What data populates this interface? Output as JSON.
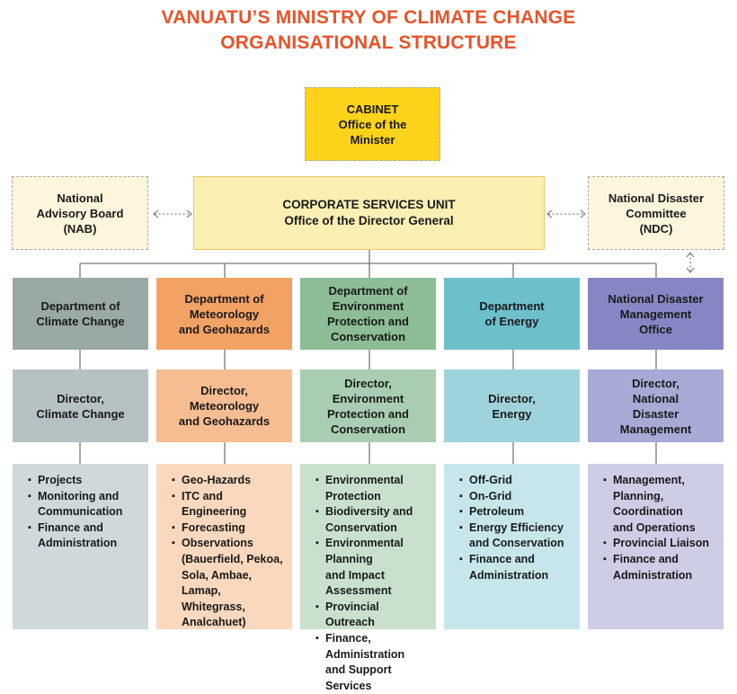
{
  "title": {
    "line1": "VANUATU’S MINISTRY OF CLIMATE CHANGE",
    "line2": "ORGANISATIONAL STRUCTURE"
  },
  "cabinet": {
    "lines": [
      "CABINET",
      "Office of the",
      "Minister"
    ]
  },
  "corporate": {
    "lines": [
      "CORPORATE SERVICES UNIT",
      "Office of the Director General"
    ]
  },
  "nab": {
    "lines": [
      "National",
      "Advisory Board",
      "(NAB)"
    ]
  },
  "ndc": {
    "lines": [
      "National Disaster",
      "Committee",
      "(NDC)"
    ]
  },
  "colors": {
    "title": "#e8532a",
    "cabinet": "#fdd21a",
    "corporate": "#fbefb4",
    "advisory": "#fdf6dd"
  },
  "departments": [
    {
      "name": [
        "Department of",
        "Climate Change"
      ],
      "director": [
        "Director,",
        "Climate Change"
      ],
      "items": [
        [
          "Projects"
        ],
        [
          "Monitoring and",
          "Communication"
        ],
        [
          "Finance and",
          "Administration"
        ]
      ],
      "colors": {
        "dept": "#98a9a6",
        "director": "#b4c2c3",
        "list": "#cfd8da"
      }
    },
    {
      "name": [
        "Department of",
        "Meteorology",
        "and Geohazards"
      ],
      "director": [
        "Director,",
        "Meteorology",
        "and Geohazards"
      ],
      "items": [
        [
          "Geo-Hazards"
        ],
        [
          "ITC and Engineering"
        ],
        [
          "Forecasting"
        ],
        [
          "Observations",
          "(Bauerfield, Pekoa,",
          "Sola, Ambae,",
          "Lamap, Whitegrass,",
          "Analcahuet)"
        ]
      ],
      "colors": {
        "dept": "#f2a264",
        "director": "#f5bd91",
        "list": "#f9d8bd"
      }
    },
    {
      "name": [
        "Department of",
        "Environment",
        "Protection and",
        "Conservation"
      ],
      "director": [
        "Director,",
        "Environment",
        "Protection and",
        "Conservation"
      ],
      "items": [
        [
          "Environmental",
          "Protection"
        ],
        [
          "Biodiversity and",
          "Conservation"
        ],
        [
          "Environmental Planning",
          "and Impact Assessment"
        ],
        [
          "Provincial Outreach"
        ],
        [
          "Finance, Administration",
          "and Support Services"
        ]
      ],
      "colors": {
        "dept": "#8dbd97",
        "director": "#a9cdb0",
        "list": "#c9e0cd"
      }
    },
    {
      "name": [
        "Department",
        "of Energy"
      ],
      "director": [
        "Director,",
        "Energy"
      ],
      "items": [
        [
          "Off-Grid"
        ],
        [
          "On-Grid"
        ],
        [
          "Petroleum"
        ],
        [
          "Energy Efficiency",
          "and Conservation"
        ],
        [
          "Finance and",
          "Administration"
        ]
      ],
      "colors": {
        "dept": "#6dbfcc",
        "director": "#9fd3dc",
        "list": "#c6e6ec"
      }
    },
    {
      "name": [
        "National Disaster",
        "Management",
        "Office"
      ],
      "director": [
        "Director,",
        "National",
        "Disaster",
        "Management"
      ],
      "items": [
        [
          "Management,",
          "Planning,",
          "Coordination",
          "and Operations"
        ],
        [
          "Provincial Liaison"
        ],
        [
          "Finance and",
          "Administration"
        ]
      ],
      "colors": {
        "dept": "#8786c4",
        "director": "#a9a9d5",
        "list": "#cdcde6"
      }
    }
  ]
}
